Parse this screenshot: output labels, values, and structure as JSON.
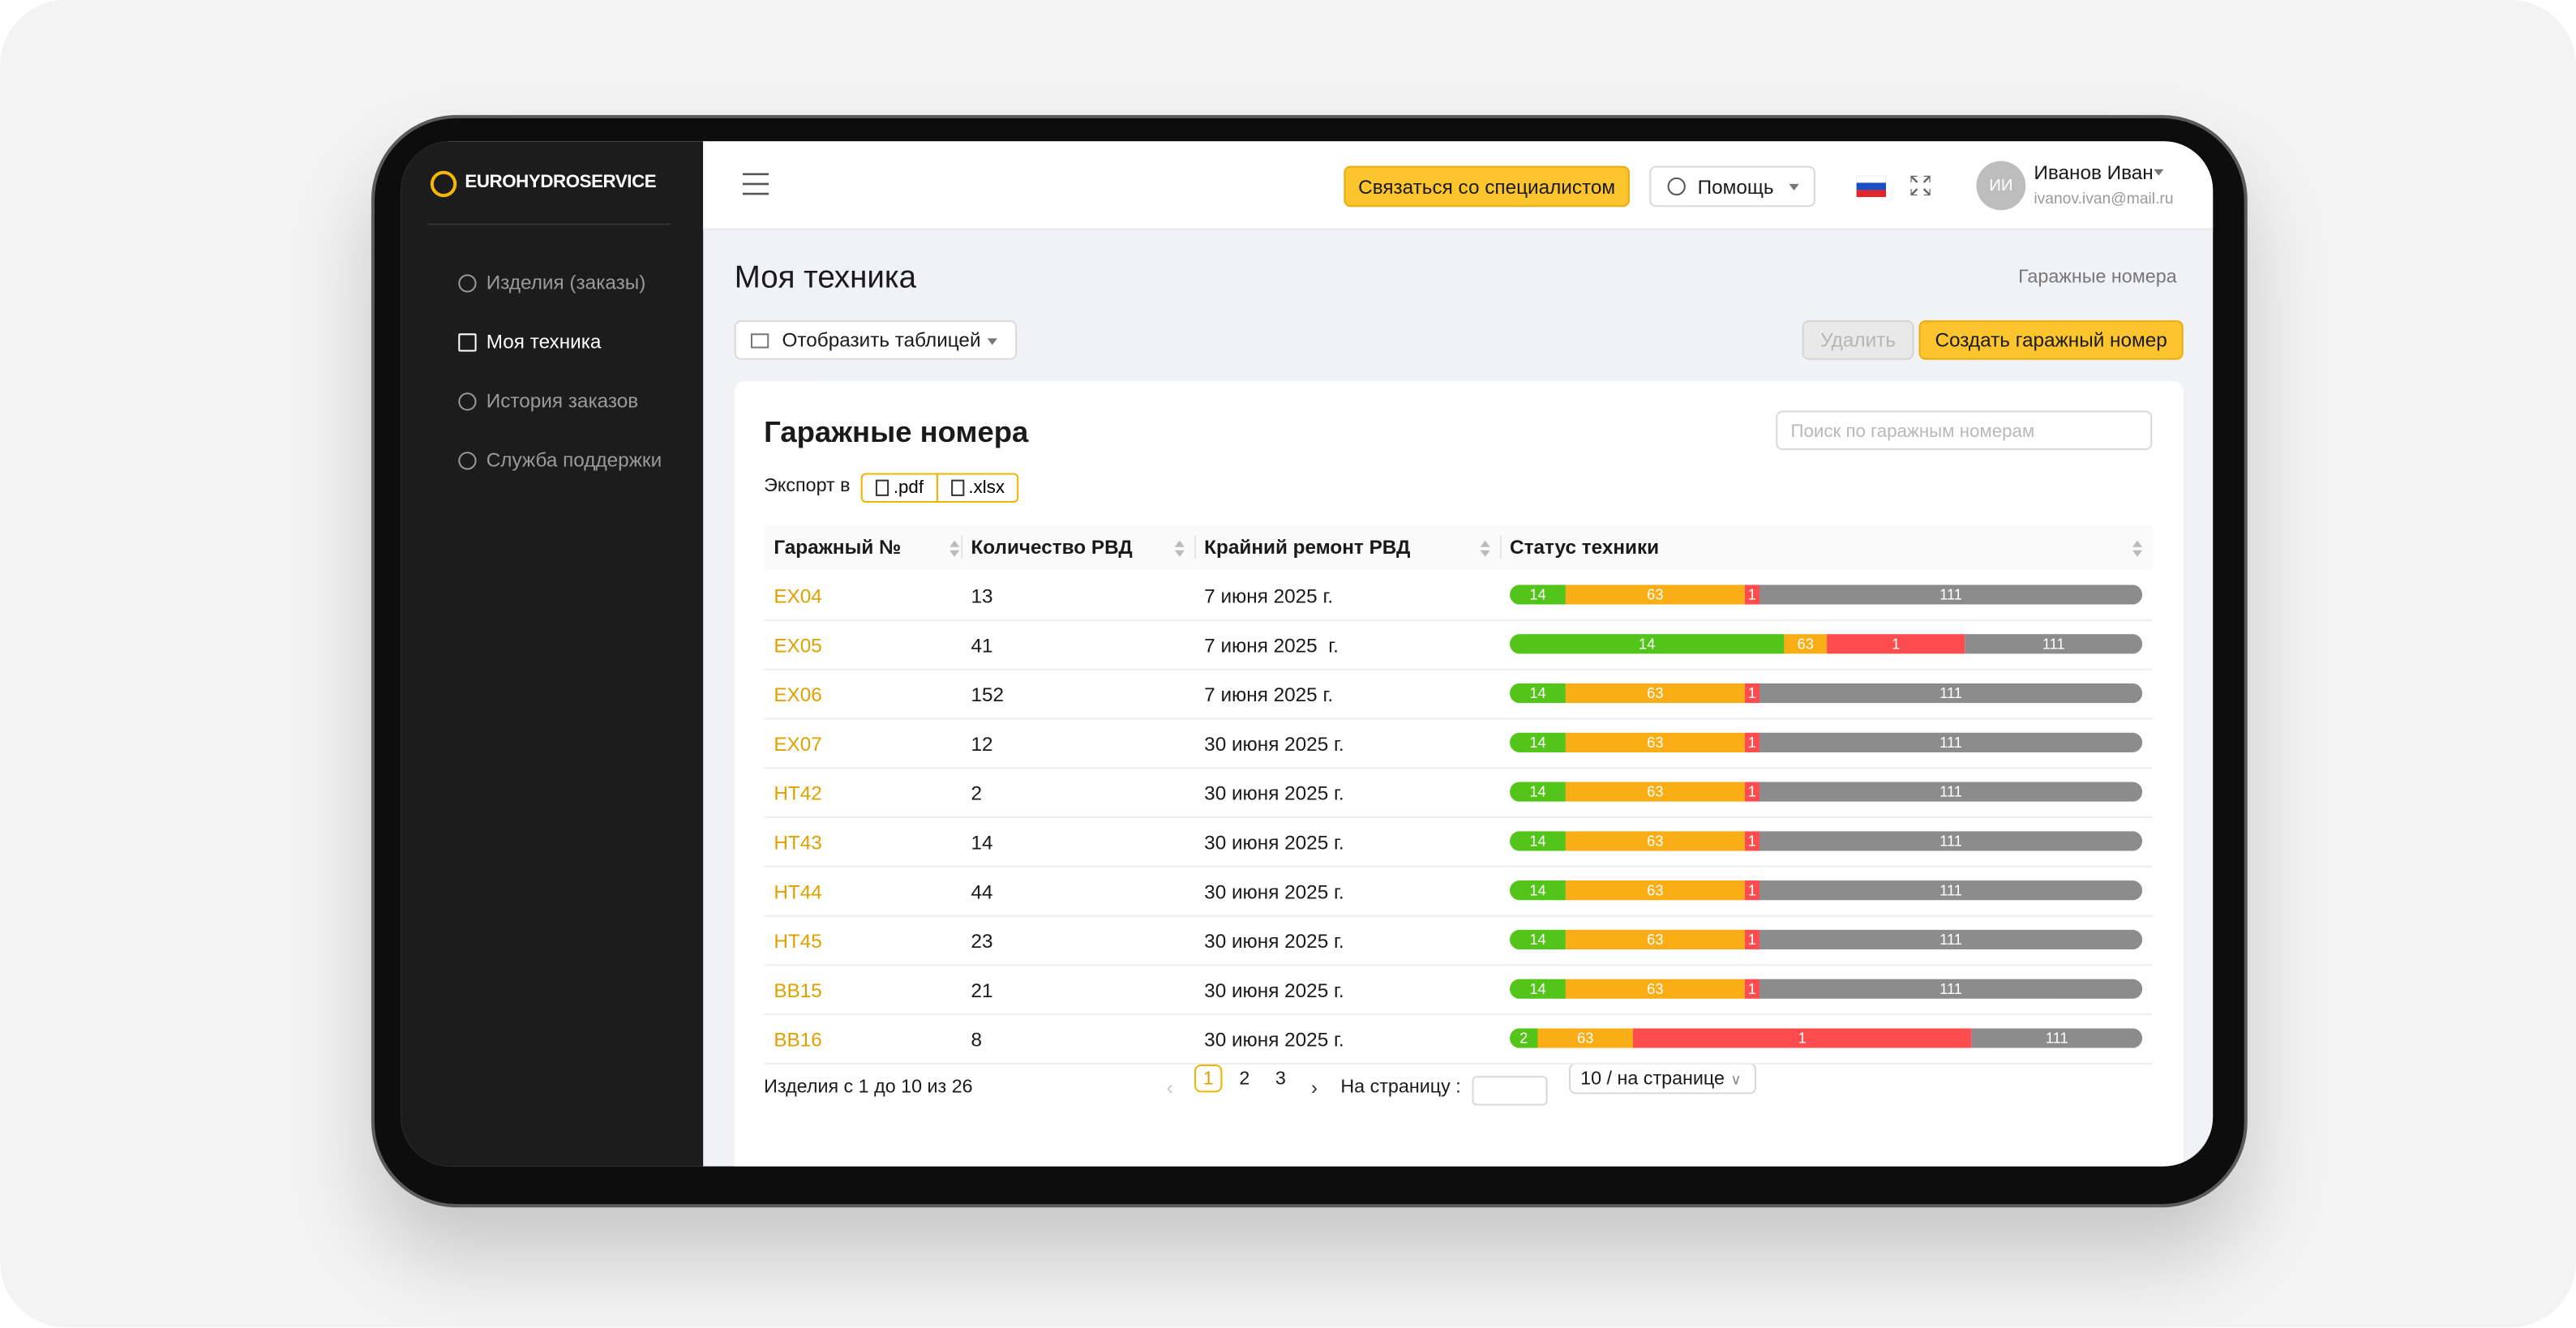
{
  "sidebar": {
    "logo": "EUROHYDROSERVICE",
    "menu": [
      "Изделия (заказы)",
      "Моя техника",
      "История заказов",
      "Служба поддержки"
    ]
  },
  "header": {
    "contact_button": "Связаться со специалистом",
    "help_button": "Помощь",
    "avatar": "ИИ",
    "user_name": "Иванов Иван",
    "user_email": "ivanov.ivan@mail.ru"
  },
  "page": {
    "title": "Моя техника",
    "breadcrumb": "Гаражные номера",
    "view_select": "Отобразить таблицей",
    "delete_button": "Удалить",
    "create_button": "Создать гаражный номер"
  },
  "card": {
    "title": "Гаражные номера",
    "search_placeholder": "Поиск по гаражным номерам",
    "export_label": "Экспорт в",
    "export_pdf": ".pdf",
    "export_xlsx": ".xlsx"
  },
  "table": {
    "columns": [
      "Гаражный №",
      "Количество РВД",
      "Крайний ремонт РВД",
      "Статус техники"
    ],
    "rows": [
      {
        "number": "EX04",
        "count": "13",
        "repair": "7 июня 2025 г.",
        "status": [
          "14",
          "63",
          "1",
          "111"
        ]
      },
      {
        "number": "EX05",
        "count": "41",
        "repair": "7 июня 2025  г.",
        "status": [
          "14",
          "63",
          "1",
          "111"
        ]
      },
      {
        "number": "EX06",
        "count": "152",
        "repair": "7 июня 2025 г.",
        "status": [
          "14",
          "63",
          "1",
          "111"
        ]
      },
      {
        "number": "EX07",
        "count": "12",
        "repair": "30 июня 2025 г.",
        "status": [
          "14",
          "63",
          "1",
          "111"
        ]
      },
      {
        "number": "HT42",
        "count": "2",
        "repair": "30 июня 2025 г.",
        "status": [
          "14",
          "63",
          "1",
          "111"
        ]
      },
      {
        "number": "HT43",
        "count": "14",
        "repair": "30 июня 2025 г.",
        "status": [
          "14",
          "63",
          "1",
          "111"
        ]
      },
      {
        "number": "HT44",
        "count": "44",
        "repair": "30 июня 2025 г.",
        "status": [
          "14",
          "63",
          "1",
          "111"
        ]
      },
      {
        "number": "HT45",
        "count": "23",
        "repair": "30 июня 2025 г.",
        "status": [
          "14",
          "63",
          "1",
          "111"
        ]
      },
      {
        "number": "BB15",
        "count": "21",
        "repair": "30 июня 2025 г.",
        "status": [
          "14",
          "63",
          "1",
          "111"
        ]
      },
      {
        "number": "BB16",
        "count": "8",
        "repair": "30 июня 2025 г.",
        "status": [
          "2",
          "63",
          "1",
          "111"
        ]
      }
    ]
  },
  "pagination": {
    "summary": "Изделия с 1 до 10 из 26",
    "pages": [
      "1",
      "2",
      "3"
    ],
    "per_page_label": "На страницу :",
    "page_size": "10 / на странице"
  }
}
